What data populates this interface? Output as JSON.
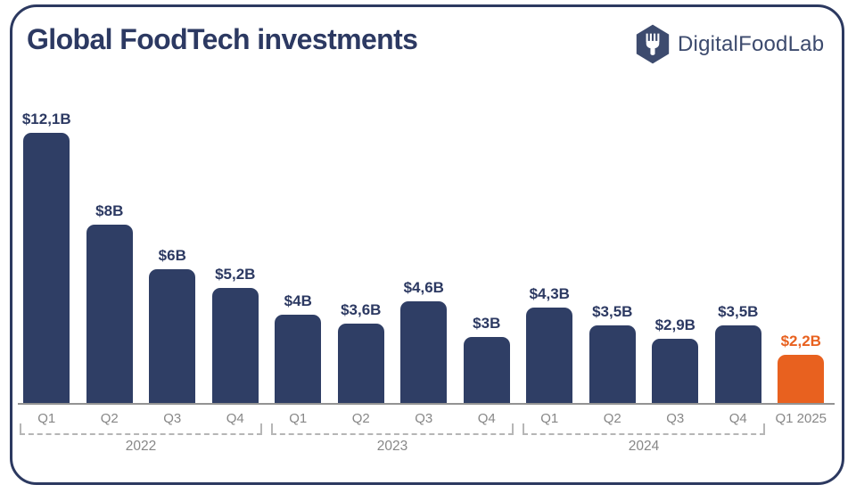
{
  "header": {
    "title": "Global FoodTech investments",
    "brand": {
      "name": "DigitalFoodLab",
      "logo_icon": "fork-hexagon-icon"
    }
  },
  "colors": {
    "bar_navy": "#2F3E65",
    "bar_orange": "#E8611F",
    "title_navy": "#2C3962",
    "axis_gray": "#939393",
    "tick_label_gray": "#878787",
    "bracket_gray": "#B6B6B6",
    "logo_navy": "#3D4B6E"
  },
  "chart_data": {
    "type": "bar",
    "title": "Global FoodTech investments",
    "unit": "$B",
    "categories": [
      "Q1",
      "Q2",
      "Q3",
      "Q4",
      "Q1",
      "Q2",
      "Q3",
      "Q4",
      "Q1",
      "Q2",
      "Q3",
      "Q4",
      "Q1 2025"
    ],
    "values": [
      12.1,
      8,
      6,
      5.2,
      4,
      3.6,
      4.6,
      3,
      4.3,
      3.5,
      2.9,
      3.5,
      2.2
    ],
    "value_labels": [
      "$12,1B",
      "$8B",
      "$6B",
      "$5,2B",
      "$4B",
      "$3,6B",
      "$4,6B",
      "$3B",
      "$4,3B",
      "$3,5B",
      "$2,9B",
      "$3,5B",
      "$2,2B"
    ],
    "highlight_index": 12,
    "year_groups": [
      {
        "label": "2022",
        "start": 0,
        "end": 3
      },
      {
        "label": "2023",
        "start": 4,
        "end": 7
      },
      {
        "label": "2024",
        "start": 8,
        "end": 11
      }
    ],
    "ylim": [
      0,
      12.5
    ],
    "grid": false,
    "legend": null
  }
}
